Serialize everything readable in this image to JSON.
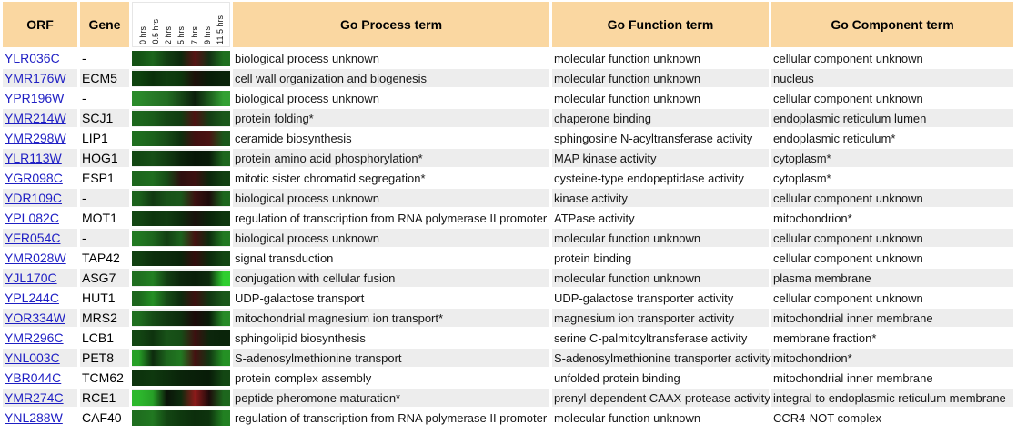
{
  "header": {
    "orf": "ORF",
    "gene": "Gene",
    "time_labels": [
      "0 hrs",
      "0.5 hrs",
      "2 hrs",
      "5 hrs",
      "7 hrs",
      "9 hrs",
      "11.5 hrs"
    ],
    "process": "Go Process term",
    "function": "Go Function term",
    "component": "Go Component term"
  },
  "colors": {
    "header_bg": "#fad7a1",
    "row_alt_bg": "#ededed",
    "link_blue": "#1f1fc4",
    "heatmap_green": "#1d661d",
    "heatmap_red": "#5c1515"
  },
  "rows": [
    {
      "orf": "YLR036C",
      "gene": "-",
      "heatmap": [
        "#145214",
        "#1c661c",
        "#123f12",
        "#0c290c",
        "#571414",
        "#132f13",
        "#1f701f"
      ],
      "process": "biological process unknown",
      "function": "molecular function unknown",
      "component": "cellular component unknown"
    },
    {
      "orf": "YMR176W",
      "gene": "ECM5",
      "heatmap": [
        "#0e420e",
        "#0a300a",
        "#0f3d0f",
        "#0c360c",
        "#1d100a",
        "#081c08",
        "#0a230a"
      ],
      "process": "cell wall organization and biogenesis",
      "function": "molecular function unknown",
      "component": "nucleus"
    },
    {
      "orf": "YPR196W",
      "gene": "-",
      "heatmap": [
        "#2a8a2a",
        "#277a27",
        "#226e22",
        "#174817",
        "#0c1f0c",
        "#1d5c1d",
        "#33a033"
      ],
      "process": "biological process unknown",
      "function": "molecular function unknown",
      "component": "cellular component unknown"
    },
    {
      "orf": "YMR214W",
      "gene": "SCJ1",
      "heatmap": [
        "#1c661c",
        "#1a5c1a",
        "#144614",
        "#113c11",
        "#4d1212",
        "#143c14",
        "#1a571a"
      ],
      "process": "protein folding*",
      "function": "chaperone binding",
      "component": "endoplasmic reticulum lumen"
    },
    {
      "orf": "YMR298W",
      "gene": "LIP1",
      "heatmap": [
        "#1f6e1f",
        "#1c621c",
        "#164c16",
        "#0e2f0e",
        "#401010",
        "#4a1212",
        "#1a571a"
      ],
      "process": "ceramide biosynthesis",
      "function": "sphingosine N-acyltransferase activity",
      "component": "endoplasmic reticulum*"
    },
    {
      "orf": "YLR113W",
      "gene": "HOG1",
      "heatmap": [
        "#124612",
        "#164f16",
        "#113c11",
        "#0a240a",
        "#071607",
        "#081b08",
        "#1d661d"
      ],
      "process": "protein amino acid phosphorylation*",
      "function": "MAP kinase activity",
      "component": "cytoplasm*"
    },
    {
      "orf": "YGR098C",
      "gene": "ESP1",
      "heatmap": [
        "#1d661d",
        "#1f6e1f",
        "#164c16",
        "#2e0f0f",
        "#3c1010",
        "#0c260c",
        "#124012"
      ],
      "process": "mitotic sister chromatid segregation*",
      "function": "cysteine-type endopeptidase activity",
      "component": "cytoplasm*"
    },
    {
      "orf": "YDR109C",
      "gene": "-",
      "heatmap": [
        "#1c621c",
        "#113811",
        "#185218",
        "#1a571a",
        "#3c1010",
        "#1d0a0a",
        "#1d661d"
      ],
      "process": "biological process unknown",
      "function": "kinase activity",
      "component": "cellular component unknown"
    },
    {
      "orf": "YPL082C",
      "gene": "MOT1",
      "heatmap": [
        "#134613",
        "#0e360e",
        "#113c11",
        "#0c2b0c",
        "#1a120d",
        "#0a240a",
        "#0e360e"
      ],
      "process": "regulation of transcription from RNA polymerase II promoter",
      "function": "ATPase activity",
      "component": "mitochondrion*"
    },
    {
      "orf": "YFR054C",
      "gene": "-",
      "heatmap": [
        "#217821",
        "#1d661d",
        "#123f12",
        "#1c621c",
        "#451111",
        "#0d2b0d",
        "#217821"
      ],
      "process": "biological process unknown",
      "function": "molecular function unknown",
      "component": "cellular component unknown"
    },
    {
      "orf": "YMR028W",
      "gene": "TAP42",
      "heatmap": [
        "#114011",
        "#0d2f0d",
        "#0c2b0c",
        "#0a240a",
        "#330d0d",
        "#0c290c",
        "#134613"
      ],
      "process": "signal transduction",
      "function": "protein binding",
      "component": "cellular component unknown"
    },
    {
      "orf": "YJL170C",
      "gene": "ASG7",
      "heatmap": [
        "#1f6e1f",
        "#228022",
        "#133f13",
        "#0c260c",
        "#0a1f0a",
        "#0d2b0d",
        "#2fce2f"
      ],
      "process": "conjugation with cellular fusion",
      "function": "molecular function unknown",
      "component": "plasma membrane"
    },
    {
      "orf": "YPL244C",
      "gene": "HUT1",
      "heatmap": [
        "#1d661d",
        "#249024",
        "#164c16",
        "#0d2b0d",
        "#3c1010",
        "#113511",
        "#1a571a"
      ],
      "process": "UDP-galactose transport",
      "function": "UDP-galactose transporter activity",
      "component": "cellular component unknown"
    },
    {
      "orf": "YOR334W",
      "gene": "MRS2",
      "heatmap": [
        "#1f6e1f",
        "#164c16",
        "#113811",
        "#0d2b0d",
        "#1c0a0a",
        "#081c08",
        "#278a27"
      ],
      "process": "mitochondrial magnesium ion transport*",
      "function": "magnesium ion transporter activity",
      "component": "mitochondrial inner membrane"
    },
    {
      "orf": "YMR296C",
      "gene": "LCB1",
      "heatmap": [
        "#134613",
        "#0e330e",
        "#185218",
        "#164c16",
        "#3c1010",
        "#0c260c",
        "#0a240a"
      ],
      "process": "sphingolipid biosynthesis",
      "function": "serine C-palmitoyltransferase activity",
      "component": "membrane fraction*"
    },
    {
      "orf": "YNL003C",
      "gene": "PET8",
      "heatmap": [
        "#27a027",
        "#0d2b0d",
        "#1d661d",
        "#217821",
        "#451111",
        "#113511",
        "#249024"
      ],
      "process": "S-adenosylmethionine transport",
      "function": "S-adenosylmethionine transporter activity",
      "component": "mitochondrion*"
    },
    {
      "orf": "YBR044C",
      "gene": "TCM62",
      "heatmap": [
        "#0d330d",
        "#0e380e",
        "#0c2e0c",
        "#0a240a",
        "#091f09",
        "#081c08",
        "#134613"
      ],
      "process": "protein complex assembly",
      "function": "unfolded protein binding",
      "component": "mitochondrial inner membrane"
    },
    {
      "orf": "YMR274C",
      "gene": "RCE1",
      "heatmap": [
        "#2db82d",
        "#27a027",
        "#0a1408",
        "#0d2b0d",
        "#8c1a1a",
        "#1d0a0a",
        "#1d661d"
      ],
      "process": "peptide pheromone maturation*",
      "function": "prenyl-dependent CAAX protease activity",
      "component": "integral to endoplasmic reticulum membrane"
    },
    {
      "orf": "YNL288W",
      "gene": "CAF40",
      "heatmap": [
        "#1f6e1f",
        "#217821",
        "#134613",
        "#0e380e",
        "#0c2e0c",
        "#0d330d",
        "#228022"
      ],
      "process": "regulation of transcription from RNA polymerase II promoter",
      "function": "molecular function unknown",
      "component": "CCR4-NOT complex"
    }
  ]
}
